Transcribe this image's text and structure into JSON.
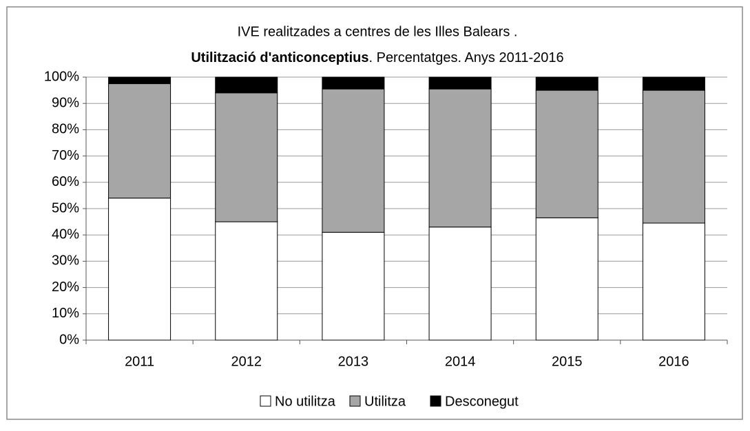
{
  "chart_data": {
    "type": "stacked_bar",
    "title": "IVE realitzades a centres de les Illes Balears .",
    "subtitle": [
      "Utilització d'anticonceptius",
      ".  Percentatges.  Anys 2011-2016"
    ],
    "categories": [
      "2011",
      "2012",
      "2013",
      "2014",
      "2015",
      "2016"
    ],
    "series": [
      {
        "name": "No utilitza",
        "color": "#ffffff",
        "values": [
          54,
          45,
          41,
          43,
          46.5,
          44.5
        ]
      },
      {
        "name": "Utilitza",
        "color": "#a6a6a6",
        "values": [
          43.5,
          49,
          54.5,
          52.5,
          48.5,
          50.5
        ]
      },
      {
        "name": "Desconegut",
        "color": "#000000",
        "values": [
          2.5,
          6,
          4.5,
          4.5,
          5,
          5
        ]
      }
    ],
    "ylim": [
      0,
      100
    ],
    "yticks": [
      {
        "value": 0,
        "label": "0%"
      },
      {
        "value": 10,
        "label": "10%"
      },
      {
        "value": 20,
        "label": "20%"
      },
      {
        "value": 30,
        "label": "30%"
      },
      {
        "value": 40,
        "label": "40%"
      },
      {
        "value": 50,
        "label": "50%"
      },
      {
        "value": 60,
        "label": "60%"
      },
      {
        "value": 70,
        "label": "70%"
      },
      {
        "value": 80,
        "label": "80%"
      },
      {
        "value": 90,
        "label": "90%"
      },
      {
        "value": 100,
        "label": "100%"
      }
    ],
    "grid": true,
    "legend": "bottom"
  }
}
